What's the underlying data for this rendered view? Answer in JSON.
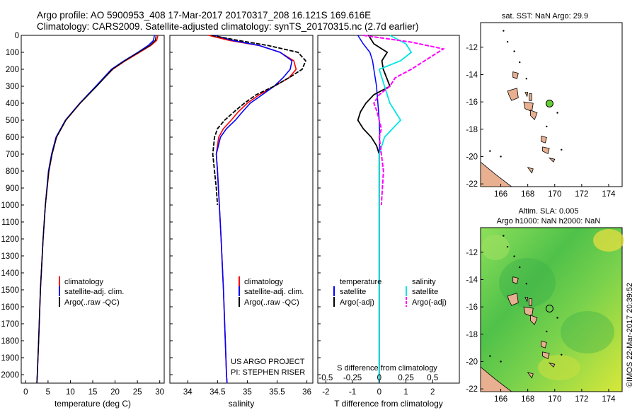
{
  "header": {
    "line1": "Argo profile: AO 5900953_408 17-Mar-2017 20170317_208 16.121S 169.616E",
    "line2": "Climatology: CARS2009. Satellite-adjusted climatology: synTS_20170315.nc (2.7d earlier)"
  },
  "depth_ticks": [
    "0",
    "100",
    "200",
    "300",
    "400",
    "500",
    "600",
    "700",
    "800",
    "900",
    "1000",
    "1100",
    "1200",
    "1300",
    "1400",
    "1500",
    "1600",
    "1700",
    "1800",
    "1900",
    "2000"
  ],
  "colors": {
    "climatology": "#ff0000",
    "satellite": "#0000ff",
    "argo": "#000000",
    "sal_satellite": "#00e5e5",
    "sal_argo": "#ff00ff",
    "land": "#e8b090",
    "sst_point": "#66cc33"
  },
  "chart_data": [
    {
      "type": "line",
      "xlabel": "temperature (deg C)",
      "ylabel": "",
      "xlim": [
        -1,
        31
      ],
      "ylim": [
        2050,
        0
      ],
      "x_ticks": [
        "0",
        "5",
        "10",
        "15",
        "20",
        "25",
        "30"
      ],
      "legend": [
        "climatology",
        "satellite-adj. clim.",
        "Argo(..raw -QC)"
      ],
      "series": [
        {
          "name": "climatology",
          "depth": [
            0,
            30,
            60,
            100,
            150,
            200,
            300,
            400,
            500,
            600,
            700,
            800,
            1000,
            1200,
            1500,
            1800,
            2000,
            2050
          ],
          "values": [
            29.6,
            29.3,
            28.0,
            25.5,
            22.3,
            19.5,
            15.8,
            12.2,
            9.0,
            6.9,
            5.9,
            5.2,
            4.4,
            3.9,
            3.3,
            2.9,
            2.6,
            2.5
          ]
        },
        {
          "name": "satellite-adj. clim.",
          "depth": [
            0,
            30,
            60,
            100,
            150,
            200,
            300,
            400,
            500,
            600,
            700,
            800,
            1000,
            1200,
            1500,
            1800,
            2000,
            2050
          ],
          "values": [
            28.8,
            28.6,
            27.4,
            25.1,
            22.0,
            19.2,
            15.7,
            12.1,
            8.9,
            6.8,
            5.8,
            5.1,
            4.4,
            3.9,
            3.3,
            2.9,
            2.6,
            2.5
          ]
        },
        {
          "name": "Argo(..raw -QC)",
          "depth": [
            0,
            30,
            60,
            100,
            150,
            200,
            300,
            400,
            500,
            600,
            700,
            800,
            1000,
            1200,
            1500,
            1800,
            2000,
            2050
          ],
          "values": [
            29.2,
            29.0,
            27.8,
            25.3,
            22.2,
            19.4,
            15.9,
            12.2,
            9.0,
            6.9,
            5.9,
            5.2,
            4.4,
            3.9,
            3.3,
            2.9,
            2.6,
            2.5
          ]
        }
      ]
    },
    {
      "type": "line",
      "xlabel": "salinity",
      "ylabel": "",
      "xlim": [
        33.7,
        36.1
      ],
      "ylim": [
        2050,
        0
      ],
      "x_ticks": [
        "34",
        "34.5",
        "35",
        "35.5",
        "36"
      ],
      "legend": [
        "climatology",
        "satellite-adj. clim.",
        "Argo(..raw -QC)"
      ],
      "annotations": [
        "US ARGO PROJECT",
        "PI: STEPHEN RISER"
      ],
      "series": [
        {
          "name": "climatology",
          "depth": [
            0,
            30,
            60,
            100,
            150,
            200,
            250,
            300,
            350,
            400,
            450,
            500,
            550,
            600,
            700,
            800,
            1000,
            1200,
            1500,
            1800,
            2000,
            2050
          ],
          "values": [
            34.35,
            34.7,
            35.2,
            35.55,
            35.78,
            35.82,
            35.7,
            35.45,
            35.2,
            35.0,
            34.85,
            34.73,
            34.6,
            34.52,
            34.48,
            34.5,
            34.53,
            34.56,
            34.6,
            34.63,
            34.65,
            34.66
          ]
        },
        {
          "name": "satellite-adj. clim.",
          "depth": [
            0,
            30,
            60,
            100,
            150,
            200,
            250,
            300,
            350,
            400,
            450,
            500,
            550,
            600,
            700,
            800,
            1000,
            1200,
            1500,
            1800,
            2000,
            2050
          ],
          "values": [
            34.45,
            34.75,
            35.2,
            35.55,
            35.75,
            35.72,
            35.6,
            35.45,
            35.25,
            35.05,
            34.92,
            34.8,
            34.65,
            34.55,
            34.48,
            34.5,
            34.53,
            34.56,
            34.6,
            34.63,
            34.65,
            34.66
          ]
        },
        {
          "name": "Argo(..raw -QC)",
          "depth": [
            0,
            30,
            60,
            100,
            150,
            200,
            250,
            300,
            350,
            400,
            450,
            500,
            550,
            600,
            700,
            800,
            900,
            1000
          ],
          "values": [
            34.4,
            34.85,
            35.35,
            35.85,
            35.98,
            35.92,
            35.7,
            35.45,
            35.15,
            34.95,
            34.78,
            34.62,
            34.5,
            34.45,
            34.42,
            34.45,
            34.48,
            34.5
          ]
        }
      ]
    },
    {
      "type": "line",
      "xlabel": "T difference from climatology",
      "xlabel_top": "S difference from climatology",
      "ylim": [
        2050,
        0
      ],
      "x_ticks": [
        "-2",
        "-1",
        "0",
        "1",
        "2"
      ],
      "x_ticks_top": [
        "-0.5",
        "-0.25",
        "0",
        "0.25",
        "0.5"
      ],
      "legend_temperature": {
        "title": "temperature",
        "items": [
          "satellite",
          "Argo(-adj)"
        ]
      },
      "legend_salinity": {
        "title": "salinity",
        "items": [
          "satellite",
          "Argo(-adj)"
        ]
      },
      "series": [
        {
          "name": "T satellite",
          "depth": [
            0,
            50,
            100,
            150,
            200,
            300,
            400,
            500,
            600,
            700,
            1000,
            2050
          ],
          "values": [
            -0.8,
            -0.6,
            -0.35,
            -0.25,
            -0.2,
            -0.1,
            -0.05,
            0.0,
            0.02,
            0.0,
            0.0,
            0.0
          ]
        },
        {
          "name": "T Argo(-adj)",
          "depth": [
            0,
            50,
            100,
            150,
            200,
            300,
            350,
            400,
            450,
            500,
            550,
            600,
            650,
            700,
            1000,
            2050
          ],
          "values": [
            -0.4,
            -0.2,
            0.3,
            0.1,
            0.15,
            0.4,
            -0.2,
            -0.5,
            -0.7,
            -0.8,
            -0.6,
            -0.3,
            -0.1,
            0.0,
            0.0,
            0.0
          ]
        },
        {
          "name": "S satellite",
          "depth": [
            0,
            50,
            100,
            150,
            200,
            300,
            400,
            500,
            600,
            700,
            1000,
            2050
          ],
          "values": [
            0.1,
            0.25,
            0.3,
            0.2,
            0.0,
            0.05,
            0.1,
            0.2,
            0.05,
            0.0,
            0.0,
            0.0
          ]
        },
        {
          "name": "S Argo(-adj)",
          "depth": [
            0,
            40,
            80,
            120,
            160,
            200,
            250,
            300,
            350,
            400,
            450,
            500,
            550,
            600,
            700,
            800,
            900,
            1000
          ],
          "values": [
            -0.15,
            0.3,
            0.6,
            0.5,
            0.4,
            0.3,
            0.15,
            0.1,
            0.0,
            -0.05,
            -0.02,
            0.0,
            0.02,
            0.0,
            0.02,
            0.04,
            0.03,
            0.02
          ]
        }
      ]
    },
    {
      "type": "map",
      "title": "sat. SST: NaN Argo: 29.9",
      "x_ticks": [
        "166",
        "168",
        "170",
        "172",
        "174"
      ],
      "y_ticks": [
        "-12",
        "-14",
        "-16",
        "-18",
        "-20",
        "-22"
      ],
      "xlim": [
        164.5,
        175
      ],
      "ylim": [
        -22.2,
        -10.2
      ],
      "point": {
        "lon": 169.616,
        "lat": -16.121
      }
    },
    {
      "type": "map",
      "title_line1": "Altim. SLA: 0.005",
      "title_line2": "Argo h1000: NaN h2000: NaN",
      "x_ticks": [
        "166",
        "168",
        "170",
        "172",
        "174"
      ],
      "y_ticks": [
        "-12",
        "-14",
        "-16",
        "-18",
        "-20",
        "-22"
      ],
      "xlim": [
        164.5,
        175
      ],
      "ylim": [
        -22.2,
        -10.2
      ],
      "point": {
        "lon": 169.616,
        "lat": -16.121
      }
    }
  ],
  "footer": {
    "credit": "©IMOS 22-Mar-2017 20:39:52"
  }
}
